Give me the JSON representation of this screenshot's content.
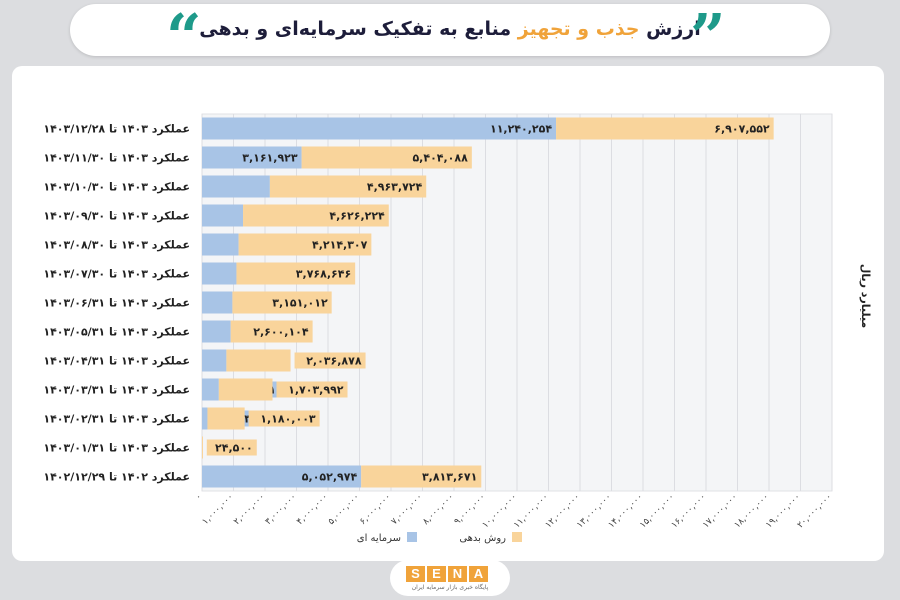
{
  "header": {
    "title_prefix": "ارزش",
    "title_highlight": "جذب و تجهیز",
    "title_rest": "منابع به تفکیک سرمایه‌ای و بدهی"
  },
  "logo": {
    "letters": [
      "S",
      "E",
      "N",
      "A"
    ],
    "tagline": "پایگاه خبری بازار سرمایه ایران"
  },
  "colors": {
    "equity": "#a8c4e6",
    "debt": "#f9d49b",
    "accent": "#f0a33a",
    "quote": "#1e9a8a"
  },
  "chart_data": {
    "type": "bar",
    "orientation": "horizontal",
    "stacked": true,
    "ylabel": "میلیارد ریال",
    "xlim": [
      0,
      20000000
    ],
    "x_ticks": [
      "۰",
      "۱,۰۰۰,۰۰۰",
      "۲,۰۰۰,۰۰۰",
      "۳,۰۰۰,۰۰۰",
      "۴,۰۰۰,۰۰۰",
      "۵,۰۰۰,۰۰۰",
      "۶,۰۰۰,۰۰۰",
      "۷,۰۰۰,۰۰۰",
      "۸,۰۰۰,۰۰۰",
      "۹,۰۰۰,۰۰۰",
      "۱۰,۰۰۰,۰۰۰",
      "۱۱,۰۰۰,۰۰۰",
      "۱۲,۰۰۰,۰۰۰",
      "۱۳,۰۰۰,۰۰۰",
      "۱۴,۰۰۰,۰۰۰",
      "۱۵,۰۰۰,۰۰۰",
      "۱۶,۰۰۰,۰۰۰",
      "۱۷,۰۰۰,۰۰۰",
      "۱۸,۰۰۰,۰۰۰",
      "۱۹,۰۰۰,۰۰۰",
      "۲۰,۰۰۰,۰۰۰"
    ],
    "grid": true,
    "legend_position": "bottom",
    "categories": [
      "عملکرد ۱۴۰۳ تا ۱۴۰۳/۱۲/۲۸",
      "عملکرد ۱۴۰۳ تا ۱۴۰۳/۱۱/۳۰",
      "عملکرد ۱۴۰۳ تا ۱۴۰۳/۱۰/۳۰",
      "عملکرد ۱۴۰۳ تا ۱۴۰۳/۰۹/۳۰",
      "عملکرد ۱۴۰۳ تا ۱۴۰۳/۰۸/۳۰",
      "عملکرد ۱۴۰۳ تا ۱۴۰۳/۰۷/۳۰",
      "عملکرد ۱۴۰۳ تا ۱۴۰۳/۰۶/۳۱",
      "عملکرد ۱۴۰۳ تا ۱۴۰۳/۰۵/۳۱",
      "عملکرد ۱۴۰۳ تا ۱۴۰۳/۰۴/۳۱",
      "عملکرد ۱۴۰۳ تا ۱۴۰۳/۰۳/۳۱",
      "عملکرد ۱۴۰۳ تا ۱۴۰۳/۰۲/۳۱",
      "عملکرد ۱۴۰۳ تا ۱۴۰۳/۰۱/۳۱",
      "عملکرد ۱۴۰۲ تا ۱۴۰۲/۱۲/۲۹"
    ],
    "series": [
      {
        "name": "سرمایه ای",
        "color": "#a8c4e6",
        "values": [
          11240254,
          3161923,
          2154524,
          1303018,
          1162481,
          1093896,
          965324,
          911238,
          774481,
          534281,
          173398,
          0,
          5052974
        ],
        "labels": [
          "۱۱,۲۴۰,۲۵۴",
          "۳,۱۶۱,۹۲۳",
          "۲,۱۵۴,۵۲۴",
          "۱,۳۰۳,۰۱۸",
          "۱,۱۶۲,۴۸۱",
          "۱,۰۹۳,۸۹۶",
          "۹۶۵,۳۲۴",
          "۹۱۱,۲۳۸",
          "۷۷۴,۴۸۱",
          "۵۳۴,۲۸۱",
          "۱۷۳,۳۹۸",
          "",
          "۵,۰۵۲,۹۷۴"
        ]
      },
      {
        "name": "روش بدهی",
        "color": "#f9d49b",
        "values": [
          6907552,
          5404088,
          4963724,
          4626224,
          4214307,
          3768646,
          3151012,
          2600104,
          2036878,
          1703992,
          1180003,
          24500,
          3813671
        ],
        "labels": [
          "۶,۹۰۷,۵۵۲",
          "۵,۴۰۴,۰۸۸",
          "۴,۹۶۳,۷۲۴",
          "۴,۶۲۶,۲۲۴",
          "۴,۲۱۴,۳۰۷",
          "۳,۷۶۸,۶۴۶",
          "۳,۱۵۱,۰۱۲",
          "۲,۶۰۰,۱۰۴",
          "۲,۰۳۶,۸۷۸",
          "۱,۷۰۳,۹۹۲",
          "۱,۱۸۰,۰۰۳",
          "۲۴,۵۰۰",
          "۳,۸۱۳,۶۷۱"
        ]
      }
    ]
  }
}
